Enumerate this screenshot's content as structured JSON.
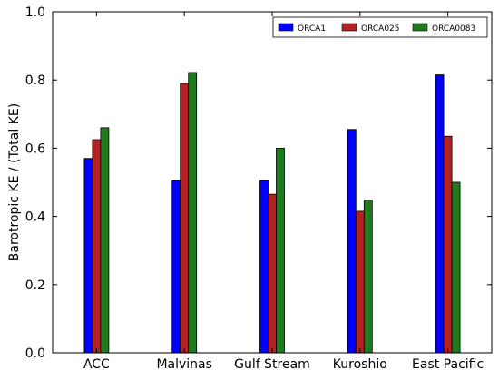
{
  "chart_data": {
    "type": "bar",
    "ylabel": "Barotropic KE / (Total KE)",
    "xlabel": "",
    "ylim": [
      0.0,
      1.0
    ],
    "yticks": [
      0.0,
      0.2,
      0.4,
      0.6,
      0.8,
      1.0
    ],
    "ytick_labels": [
      "0.0",
      "0.2",
      "0.4",
      "0.6",
      "0.8",
      "1.0"
    ],
    "categories": [
      "ACC",
      "Malvinas",
      "Gulf Stream",
      "Kuroshio",
      "East Pacific"
    ],
    "series": [
      {
        "name": "ORCA1",
        "color": "#0000ff",
        "values": [
          0.57,
          0.505,
          0.505,
          0.655,
          0.815
        ]
      },
      {
        "name": "ORCA025",
        "color": "#b22222",
        "values": [
          0.625,
          0.79,
          0.465,
          0.415,
          0.635
        ]
      },
      {
        "name": "ORCA0083",
        "color": "#1f7a1f",
        "values": [
          0.66,
          0.822,
          0.6,
          0.448,
          0.5
        ]
      }
    ],
    "grid": false,
    "legend": "top-right"
  }
}
